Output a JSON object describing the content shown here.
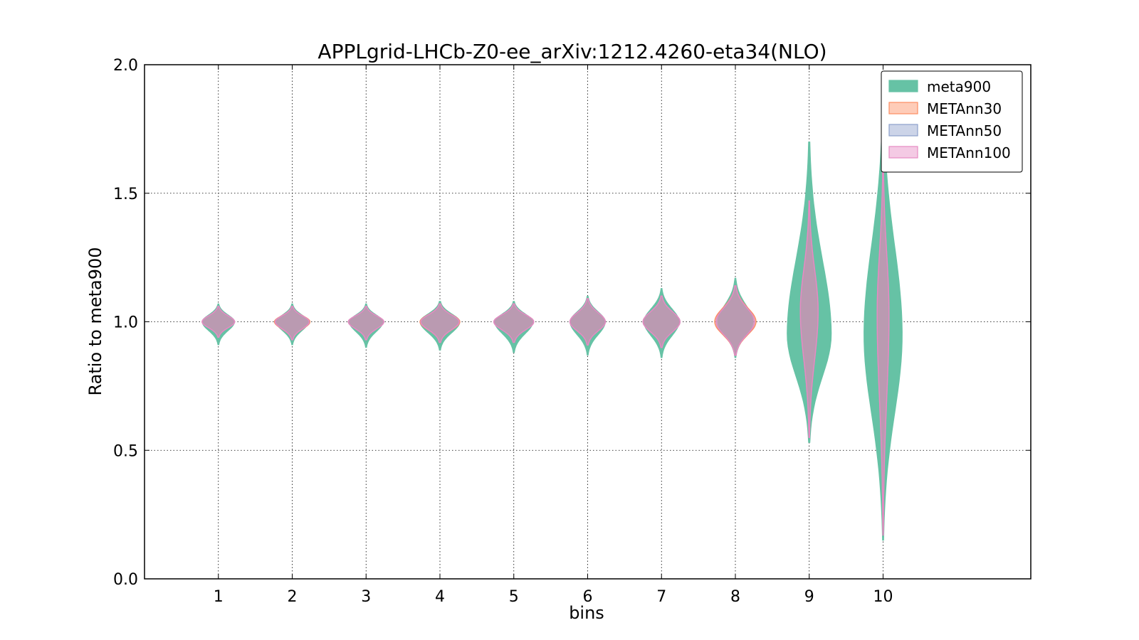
{
  "chart_data": {
    "type": "violin",
    "title": "APPLgrid-LHCb-Z0-ee_arXiv:1212.4260-eta34(NLO)",
    "xlabel": "bins",
    "ylabel": "Ratio to meta900",
    "categories": [
      "1",
      "2",
      "3",
      "4",
      "5",
      "6",
      "7",
      "8",
      "9",
      "10"
    ],
    "xlim": [
      0,
      12
    ],
    "ylim": [
      0.0,
      2.0
    ],
    "yticks": [
      "0.0",
      "0.5",
      "1.0",
      "1.5",
      "2.0"
    ],
    "grid": true,
    "legend_position": "top-right",
    "series": [
      {
        "name": "meta900",
        "color": "#66c2a5",
        "center": [
          1.0,
          1.0,
          1.0,
          1.0,
          1.0,
          1.0,
          1.0,
          1.0,
          0.95,
          0.95
        ],
        "lower": [
          0.91,
          0.91,
          0.9,
          0.89,
          0.88,
          0.87,
          0.86,
          0.86,
          0.53,
          0.15
        ],
        "upper": [
          1.07,
          1.07,
          1.07,
          1.08,
          1.08,
          1.1,
          1.13,
          1.17,
          1.7,
          1.85
        ],
        "halfwidth": [
          0.22,
          0.22,
          0.23,
          0.27,
          0.26,
          0.24,
          0.24,
          0.24,
          0.3,
          0.26
        ]
      },
      {
        "name": "METAnn30",
        "color": "#fc8d62",
        "center": [
          1.0,
          1.0,
          1.0,
          1.0,
          1.0,
          1.0,
          1.0,
          1.0,
          1.04,
          1.03
        ],
        "lower": [
          0.94,
          0.93,
          0.93,
          0.92,
          0.92,
          0.91,
          0.9,
          0.87,
          0.55,
          0.17
        ],
        "upper": [
          1.06,
          1.06,
          1.06,
          1.07,
          1.07,
          1.09,
          1.1,
          1.14,
          1.47,
          1.65
        ],
        "halfwidth": [
          0.22,
          0.24,
          0.24,
          0.27,
          0.27,
          0.24,
          0.25,
          0.28,
          0.12,
          0.08
        ]
      },
      {
        "name": "METAnn50",
        "color": "#8da0cb",
        "center": [
          1.0,
          1.0,
          1.0,
          1.0,
          1.0,
          1.0,
          1.0,
          1.0,
          1.04,
          1.03
        ],
        "lower": [
          0.94,
          0.93,
          0.93,
          0.92,
          0.92,
          0.91,
          0.9,
          0.87,
          0.55,
          0.17
        ],
        "upper": [
          1.06,
          1.06,
          1.06,
          1.07,
          1.07,
          1.09,
          1.1,
          1.14,
          1.47,
          1.65
        ],
        "halfwidth": [
          0.22,
          0.23,
          0.24,
          0.26,
          0.27,
          0.24,
          0.25,
          0.26,
          0.12,
          0.08
        ]
      },
      {
        "name": "METAnn100",
        "color": "#e78ac3",
        "center": [
          1.0,
          1.0,
          1.0,
          1.0,
          1.0,
          1.0,
          1.0,
          1.0,
          1.04,
          1.03
        ],
        "lower": [
          0.94,
          0.93,
          0.93,
          0.92,
          0.92,
          0.91,
          0.9,
          0.87,
          0.55,
          0.17
        ],
        "upper": [
          1.06,
          1.06,
          1.06,
          1.07,
          1.07,
          1.09,
          1.1,
          1.14,
          1.47,
          1.65
        ],
        "halfwidth": [
          0.22,
          0.23,
          0.24,
          0.26,
          0.27,
          0.24,
          0.25,
          0.26,
          0.12,
          0.08
        ]
      }
    ]
  }
}
